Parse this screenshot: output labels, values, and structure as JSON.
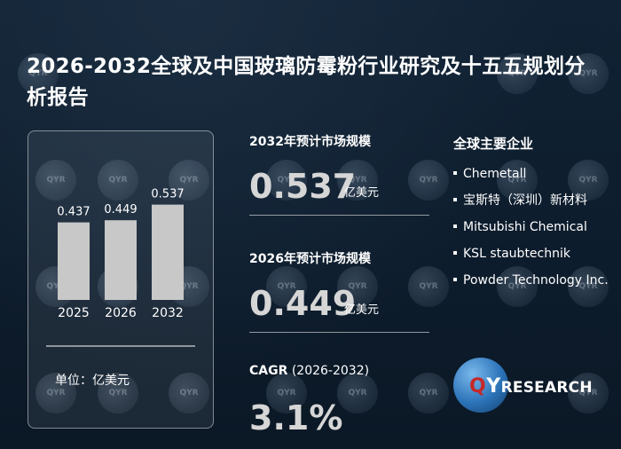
{
  "title": "2026-2032全球及中国玻璃防霉粉行业研究及十五五规划分析报告",
  "chart_data": {
    "type": "bar",
    "categories": [
      "2025",
      "2026",
      "2032"
    ],
    "values": [
      0.437,
      0.449,
      0.537
    ],
    "data_labels": [
      "0.437",
      "0.449",
      "0.537"
    ],
    "unit_label": "单位：亿美元",
    "bar_color": "#c8c8c8"
  },
  "stats": {
    "s2032_head": "2032年预计市场规模",
    "s2032_value": "0.537",
    "s2032_unit": "亿美元",
    "s2026_head": "2026年预计市场规模",
    "s2026_value": "0.449",
    "s2026_unit": "亿美元",
    "cagr_head_bold": "CAGR",
    "cagr_head_rest": " (2026-2032)",
    "cagr_value": "3.1%"
  },
  "companies": {
    "head": "全球主要企业",
    "items": [
      "Chemetall",
      "宝斯特（深圳）新材料",
      "Mitsubishi Chemical",
      "KSL staubtechnik",
      "Powder Technology Inc."
    ]
  },
  "logo": {
    "q": "Q",
    "y": "Y",
    "r": "RESEARCH"
  },
  "watermark": "QYR",
  "colors": {
    "background": "#0c1a2a",
    "value_grey": "#d6d6d6",
    "logo_red": "#c62828",
    "logo_blue": "#2b73b8"
  }
}
